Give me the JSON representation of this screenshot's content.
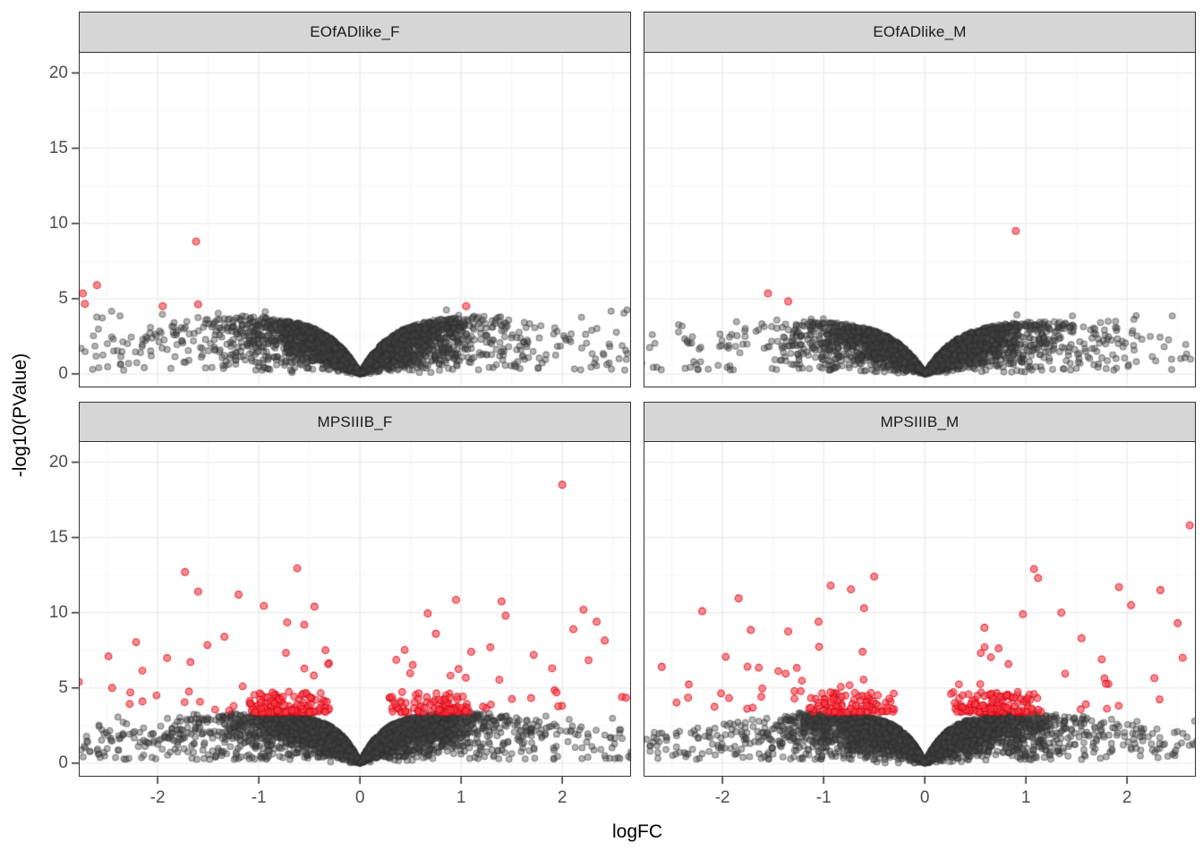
{
  "chart_data": {
    "type": "scatter",
    "subtype": "faceted_volcano_plot",
    "title": "",
    "xlabel": "logFC",
    "ylabel": "-log10(PValue)",
    "xlim": [
      -2.78,
      2.68
    ],
    "ylim": [
      -0.9,
      21.4
    ],
    "xticks": [
      -2,
      -1,
      0,
      1,
      2
    ],
    "yticks": [
      0,
      5,
      10,
      15,
      20
    ],
    "x_minor": [
      -2.5,
      -1.5,
      -0.5,
      0.5,
      1.5,
      2.5
    ],
    "y_minor": [
      2.5,
      7.5,
      12.5,
      17.5
    ],
    "grid": true,
    "legend_position": "none",
    "colors": {
      "red_fill": "rgba(252,60,68,0.60)",
      "red_stroke": "rgba(214,0,20,0.75)",
      "gray_fill": "rgba(70,70,70,0.40)",
      "gray_stroke": "rgba(45,45,45,0.50)",
      "grid_major": "#EBEBEB",
      "grid_minor": "#F6F6F6",
      "panel_border": "#333333",
      "strip_fill": "#D6D6D6",
      "axis_text": "#4D4D4D",
      "tick_mark": "#333333",
      "title_text": "#000000",
      "panel_bg": "#FFFFFF"
    },
    "facets": [
      {
        "label": "EOfADlike_F",
        "seed": 11,
        "cloud": {
          "n": 2900,
          "x_sigma": 0.5,
          "tail_frac": 0.18,
          "env_ymax": 3.95,
          "env_k": 3.2,
          "y_pow": 0.5
        },
        "gray_scatter": {
          "n": 150,
          "x_min": 0.85,
          "x_max": 2.72,
          "y_min": 0.25,
          "y_max": 4.25
        },
        "gray_points": [
          [
            2.64,
            4.25
          ],
          [
            -2.62,
            1.85
          ],
          [
            -2.4,
            1.55
          ],
          [
            -2.15,
            1.95
          ]
        ],
        "red_band": null,
        "red_scatter": null,
        "red_points": [
          [
            -2.6,
            5.9
          ],
          [
            -2.74,
            5.35
          ],
          [
            -2.72,
            4.65
          ],
          [
            -1.62,
            8.8
          ],
          [
            -1.95,
            4.5
          ],
          [
            -1.6,
            4.62
          ],
          [
            1.05,
            4.5
          ]
        ]
      },
      {
        "label": "EOfADlike_M",
        "seed": 22,
        "cloud": {
          "n": 2700,
          "x_sigma": 0.5,
          "tail_frac": 0.17,
          "env_ymax": 3.6,
          "env_k": 3.2,
          "y_pow": 0.5
        },
        "gray_scatter": {
          "n": 140,
          "x_min": 0.85,
          "x_max": 2.7,
          "y_min": 0.25,
          "y_max": 4.0
        },
        "gray_points": [
          [
            -2.72,
            1.75
          ],
          [
            2.58,
            1.95
          ],
          [
            -2.35,
            2.2
          ]
        ],
        "red_band": null,
        "red_scatter": null,
        "red_points": [
          [
            -1.55,
            5.35
          ],
          [
            -1.35,
            4.82
          ],
          [
            0.9,
            9.5
          ]
        ]
      },
      {
        "label": "MPSIIIB_F",
        "seed": 33,
        "cloud": {
          "n": 3300,
          "x_sigma": 0.55,
          "tail_frac": 0.2,
          "env_ymax": 3.35,
          "env_k": 4.5,
          "y_pow": 0.45
        },
        "gray_scatter": {
          "n": 175,
          "x_min": 0.9,
          "x_max": 2.72,
          "y_min": 0.25,
          "y_max": 3.25
        },
        "gray_points": [
          [
            -2.55,
            2.2
          ],
          [
            2.52,
            1.67
          ],
          [
            2.1,
            2.45
          ],
          [
            2.42,
            0.5
          ]
        ],
        "red_band": {
          "n": 215,
          "x_inner": 0.3,
          "x_span": 0.78,
          "y_base": 3.38,
          "y_span": 1.35
        },
        "red_scatter": {
          "n": 52,
          "y_base": 3.5,
          "y_span": 4.6
        },
        "red_points": [
          [
            2.0,
            18.5
          ],
          [
            -1.73,
            12.7
          ],
          [
            -0.62,
            12.95
          ],
          [
            -1.6,
            11.4
          ],
          [
            -1.2,
            11.2
          ],
          [
            -0.45,
            10.4
          ],
          [
            -0.95,
            10.45
          ],
          [
            -0.72,
            9.35
          ],
          [
            -1.34,
            8.4
          ],
          [
            0.67,
            9.95
          ],
          [
            0.95,
            10.85
          ],
          [
            1.4,
            10.75
          ],
          [
            1.44,
            9.8
          ],
          [
            2.21,
            10.2
          ],
          [
            2.42,
            8.15
          ],
          [
            2.11,
            8.9
          ],
          [
            2.34,
            9.4
          ],
          [
            2.59,
            4.4
          ],
          [
            2.63,
            4.35
          ],
          [
            -2.78,
            5.4
          ],
          [
            -2.27,
            4.7
          ],
          [
            -2.45,
            5.0
          ],
          [
            1.9,
            6.3
          ],
          [
            0.75,
            8.6
          ],
          [
            1.1,
            7.4
          ],
          [
            -0.55,
            9.2
          ]
        ]
      },
      {
        "label": "MPSIIIB_M",
        "seed": 44,
        "cloud": {
          "n": 3300,
          "x_sigma": 0.55,
          "tail_frac": 0.2,
          "env_ymax": 3.35,
          "env_k": 4.5,
          "y_pow": 0.45
        },
        "gray_scatter": {
          "n": 175,
          "x_min": 0.9,
          "x_max": 2.72,
          "y_min": 0.25,
          "y_max": 3.25
        },
        "gray_points": [
          [
            2.65,
            1.3
          ],
          [
            -2.6,
            2.0
          ]
        ],
        "red_band": {
          "n": 215,
          "x_inner": 0.3,
          "x_span": 0.78,
          "y_base": 3.38,
          "y_span": 1.35
        },
        "red_scatter": {
          "n": 55,
          "y_base": 3.5,
          "y_span": 4.6
        },
        "red_points": [
          [
            2.62,
            15.8
          ],
          [
            1.12,
            12.3
          ],
          [
            1.08,
            12.9
          ],
          [
            -0.93,
            11.8
          ],
          [
            -0.73,
            11.55
          ],
          [
            -1.84,
            10.95
          ],
          [
            -1.72,
            8.85
          ],
          [
            -1.35,
            8.75
          ],
          [
            0.59,
            9.0
          ],
          [
            1.92,
            11.7
          ],
          [
            2.04,
            10.5
          ],
          [
            2.27,
            5.65
          ],
          [
            -2.34,
            4.35
          ],
          [
            -2.6,
            6.4
          ],
          [
            -2.2,
            10.1
          ],
          [
            2.33,
            11.5
          ],
          [
            2.5,
            9.3
          ],
          [
            1.35,
            10.0
          ],
          [
            -0.5,
            12.4
          ],
          [
            0.97,
            9.9
          ],
          [
            1.55,
            8.3
          ],
          [
            2.55,
            7.0
          ],
          [
            -1.05,
            9.4
          ],
          [
            -0.6,
            10.3
          ],
          [
            1.75,
            6.9
          ]
        ]
      }
    ]
  }
}
